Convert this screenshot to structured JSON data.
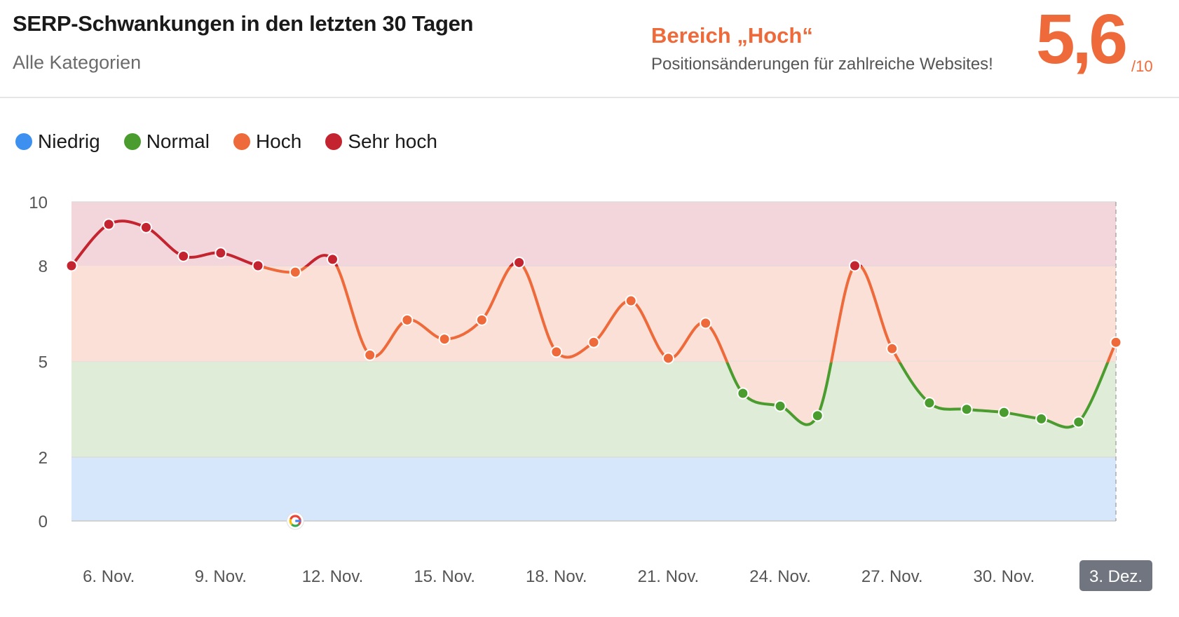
{
  "header": {
    "title": "SERP-Schwankungen in den letzten 30 Tagen",
    "subtitle": "Alle Kategorien",
    "level_title": "Bereich „Hoch“",
    "level_description": "Positionsänderungen für zahlreiche Websites!",
    "score": "5,6",
    "score_max": "/10",
    "accent_color": "#ee6a3a"
  },
  "legend": [
    {
      "label": "Niedrig",
      "color": "#3d8ff0"
    },
    {
      "label": "Normal",
      "color": "#4a9c2f"
    },
    {
      "label": "Hoch",
      "color": "#ee6a3a"
    },
    {
      "label": "Sehr hoch",
      "color": "#c4242f"
    }
  ],
  "chart_data": {
    "type": "area",
    "title": "SERP-Schwankungen in den letzten 30 Tagen",
    "ylim": [
      0,
      10
    ],
    "yticks": [
      0,
      2,
      5,
      8,
      10
    ],
    "bands": [
      {
        "name": "Niedrig",
        "from": 0,
        "to": 2,
        "color": "#d6e6fb"
      },
      {
        "name": "Normal",
        "from": 2,
        "to": 5,
        "color": "#dfecd8"
      },
      {
        "name": "Hoch",
        "from": 5,
        "to": 8,
        "color": "#fbe0d7"
      },
      {
        "name": "Sehr hoch",
        "from": 8,
        "to": 10,
        "color": "#f2d6db"
      }
    ],
    "x_tick_labels": [
      "6. Nov.",
      "9. Nov.",
      "12. Nov.",
      "15. Nov.",
      "18. Nov.",
      "21. Nov.",
      "24. Nov.",
      "27. Nov.",
      "30. Nov.",
      "3. Dez."
    ],
    "x_tick_indices": [
      1,
      4,
      7,
      10,
      13,
      16,
      19,
      22,
      25,
      28
    ],
    "active_label_index": 9,
    "google_update_index": 6,
    "series": [
      {
        "name": "SERP-Schwankungen",
        "dates": [
          "5. Nov.",
          "6. Nov.",
          "7. Nov.",
          "8. Nov.",
          "9. Nov.",
          "10. Nov.",
          "11. Nov.",
          "12. Nov.",
          "13. Nov.",
          "14. Nov.",
          "15. Nov.",
          "16. Nov.",
          "17. Nov.",
          "18. Nov.",
          "19. Nov.",
          "20. Nov.",
          "21. Nov.",
          "22. Nov.",
          "23. Nov.",
          "24. Nov.",
          "25. Nov.",
          "26. Nov.",
          "27. Nov.",
          "28. Nov.",
          "29. Nov.",
          "30. Nov.",
          "1. Dez.",
          "2. Dez.",
          "3. Dez."
        ],
        "values": [
          8.0,
          9.3,
          9.2,
          8.3,
          8.4,
          8.0,
          7.8,
          8.2,
          5.2,
          6.3,
          5.7,
          6.3,
          8.1,
          5.3,
          5.6,
          6.9,
          5.1,
          6.2,
          4.0,
          3.6,
          3.3,
          8.0,
          5.4,
          3.7,
          3.5,
          3.4,
          3.2,
          3.1,
          5.6
        ]
      }
    ],
    "colors": {
      "low": "#3d8ff0",
      "normal": "#4a9c2f",
      "high": "#ee6a3a",
      "very_high": "#c4242f"
    }
  }
}
